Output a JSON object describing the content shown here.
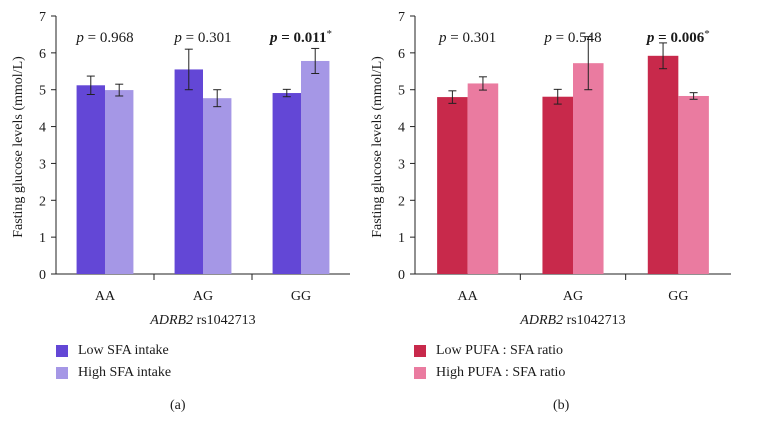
{
  "chart_data": [
    {
      "type": "bar",
      "panel_label": "(a)",
      "categories": [
        "AA",
        "AG",
        "GG"
      ],
      "xlabel_italic": "ADRB2",
      "xlabel_rest": " rs1042713",
      "ylabel": "Fasting glucose levels (mmol/L)",
      "ylim": [
        0,
        7
      ],
      "yticks": [
        "0",
        "1",
        "2",
        "3",
        "4",
        "5",
        "6",
        "7"
      ],
      "series": [
        {
          "name": "Low SFA intake",
          "color": "#6347d6",
          "values": [
            5.12,
            5.55,
            4.91
          ],
          "errors": [
            0.25,
            0.55,
            0.1
          ]
        },
        {
          "name": "High SFA intake",
          "color": "#a597e6",
          "values": [
            4.99,
            4.77,
            5.78
          ],
          "errors": [
            0.16,
            0.23,
            0.34
          ]
        }
      ],
      "annotations": [
        {
          "p_label": "p",
          "value": " = 0.968",
          "bold": false,
          "star": ""
        },
        {
          "p_label": "p",
          "value": " = 0.301",
          "bold": false,
          "star": ""
        },
        {
          "p_label": "p",
          "value": " = 0.011",
          "bold": true,
          "star": "*"
        }
      ]
    },
    {
      "type": "bar",
      "panel_label": "(b)",
      "categories": [
        "AA",
        "AG",
        "GG"
      ],
      "xlabel_italic": "ADRB2",
      "xlabel_rest": " rs1042713",
      "ylabel": "Fasting glucose levels (mmol/L)",
      "ylim": [
        0,
        7
      ],
      "yticks": [
        "0",
        "1",
        "2",
        "3",
        "4",
        "5",
        "6",
        "7"
      ],
      "series": [
        {
          "name": "Low PUFA : SFA ratio",
          "color": "#c8294b",
          "values": [
            4.8,
            4.81,
            5.92
          ],
          "errors": [
            0.17,
            0.2,
            0.35
          ]
        },
        {
          "name": "High PUFA : SFA ratio",
          "color": "#ea7ba0",
          "values": [
            5.17,
            5.72,
            4.83
          ],
          "errors": [
            0.18,
            0.72,
            0.09
          ]
        }
      ],
      "annotations": [
        {
          "p_label": "p",
          "value": " = 0.301",
          "bold": false,
          "star": ""
        },
        {
          "p_label": "p",
          "value": " = 0.548",
          "bold": false,
          "star": ""
        },
        {
          "p_label": "p",
          "value": " = 0.006",
          "bold": true,
          "star": "*"
        }
      ]
    }
  ]
}
